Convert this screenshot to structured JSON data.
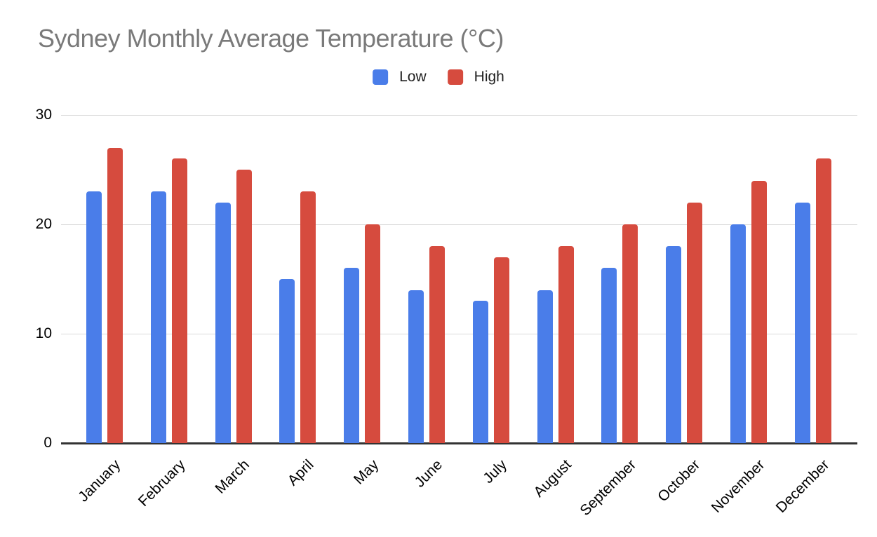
{
  "title": {
    "text": "Sydney Monthly Average Temperature (°C)"
  },
  "legend": {
    "items": [
      {
        "label": "Low",
        "color": "#4A7DE9"
      },
      {
        "label": "High",
        "color": "#D64B3E"
      }
    ]
  },
  "y_axis": {
    "tick_labels": [
      "30",
      "20",
      "10",
      "0"
    ]
  },
  "chart_data": {
    "type": "bar",
    "title": "Sydney Monthly Average Temperature (°C)",
    "categories": [
      "January",
      "February",
      "March",
      "April",
      "May",
      "June",
      "July",
      "August",
      "September",
      "October",
      "November",
      "December"
    ],
    "series": [
      {
        "name": "Low",
        "color": "#4A7DE9",
        "values": [
          23,
          23,
          22,
          15,
          16,
          14,
          13,
          14,
          16,
          18,
          20,
          22
        ]
      },
      {
        "name": "High",
        "color": "#D64B3E",
        "values": [
          27,
          26,
          25,
          23,
          20,
          18,
          17,
          18,
          20,
          22,
          24,
          26
        ]
      }
    ],
    "xlabel": "",
    "ylabel": "",
    "ylim": [
      0,
      30
    ],
    "yticks": [
      0,
      10,
      20,
      30
    ],
    "grid": true,
    "legend_position": "top",
    "x_label_rotation_deg": -45,
    "grid_color": "#d9d9d9",
    "axis_line_color": "#333333",
    "title_color": "#7a7a7a"
  }
}
